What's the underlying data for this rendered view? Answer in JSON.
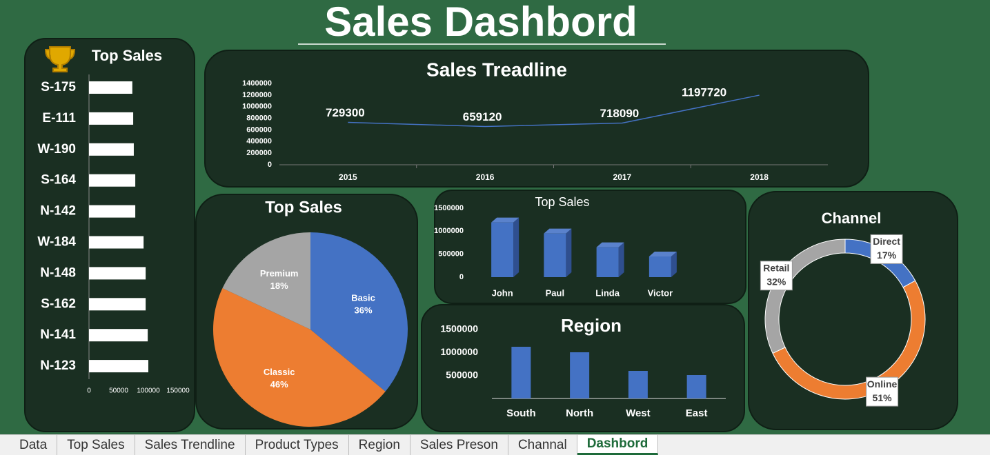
{
  "title": "Sales Dashbord",
  "chart_data": [
    {
      "type": "hbar",
      "title": "Top Sales",
      "categories": [
        "S-175",
        "E-111",
        "W-190",
        "S-164",
        "N-142",
        "W-184",
        "N-148",
        "S-162",
        "N-141",
        "N-123"
      ],
      "values": [
        73000,
        74500,
        75500,
        78000,
        78000,
        92000,
        95500,
        95500,
        99000,
        100000
      ],
      "color": "#ffffff",
      "xlim": [
        0,
        150000
      ],
      "xticks": [
        0,
        50000,
        100000,
        150000
      ]
    },
    {
      "type": "line",
      "title": "Sales Treadline",
      "categories": [
        "2015",
        "2016",
        "2017",
        "2018"
      ],
      "values": [
        729300,
        659120,
        718090,
        1197720
      ],
      "color": "#4472c4",
      "ylim": [
        0,
        1400000
      ],
      "yticks": [
        0,
        200000,
        400000,
        600000,
        800000,
        1000000,
        1200000,
        1400000
      ]
    },
    {
      "type": "pie",
      "title": "Top Sales",
      "categories": [
        "Basic",
        "Classic",
        "Premium"
      ],
      "values": [
        36,
        46,
        18
      ],
      "value_labels": [
        "36%",
        "46%",
        "18%"
      ],
      "colors": [
        "#4472c4",
        "#ed7d31",
        "#a5a5a5"
      ]
    },
    {
      "type": "bar3d",
      "title": "Top Sales",
      "categories": [
        "John",
        "Paul",
        "Linda",
        "Victor"
      ],
      "values": [
        1190000,
        950000,
        650000,
        450000
      ],
      "color": "#4472c4",
      "ylim": [
        0,
        1500000
      ],
      "yticks": [
        0,
        500000,
        1000000,
        1500000
      ]
    },
    {
      "type": "bar",
      "title": "Region",
      "categories": [
        "South",
        "North",
        "West",
        "East"
      ],
      "values": [
        1125000,
        1005000,
        600000,
        510000
      ],
      "color": "#4472c4",
      "ylim": [
        0,
        1500000
      ],
      "yticks": [
        500000,
        1000000,
        1500000
      ]
    },
    {
      "type": "donut",
      "title": "Channel",
      "categories": [
        "Direct",
        "Online",
        "Retail"
      ],
      "values": [
        17,
        51,
        32
      ],
      "value_labels": [
        "17%",
        "51%",
        "32%"
      ],
      "colors": [
        "#4472c4",
        "#ed7d31",
        "#a5a5a5"
      ]
    }
  ],
  "sheet_tabs": [
    {
      "label": "Data"
    },
    {
      "label": "Top Sales"
    },
    {
      "label": "Sales Trendline"
    },
    {
      "label": "Product Types"
    },
    {
      "label": "Region"
    },
    {
      "label": "Sales Preson"
    },
    {
      "label": "Channal"
    },
    {
      "label": "Dashbord",
      "active": true
    }
  ]
}
